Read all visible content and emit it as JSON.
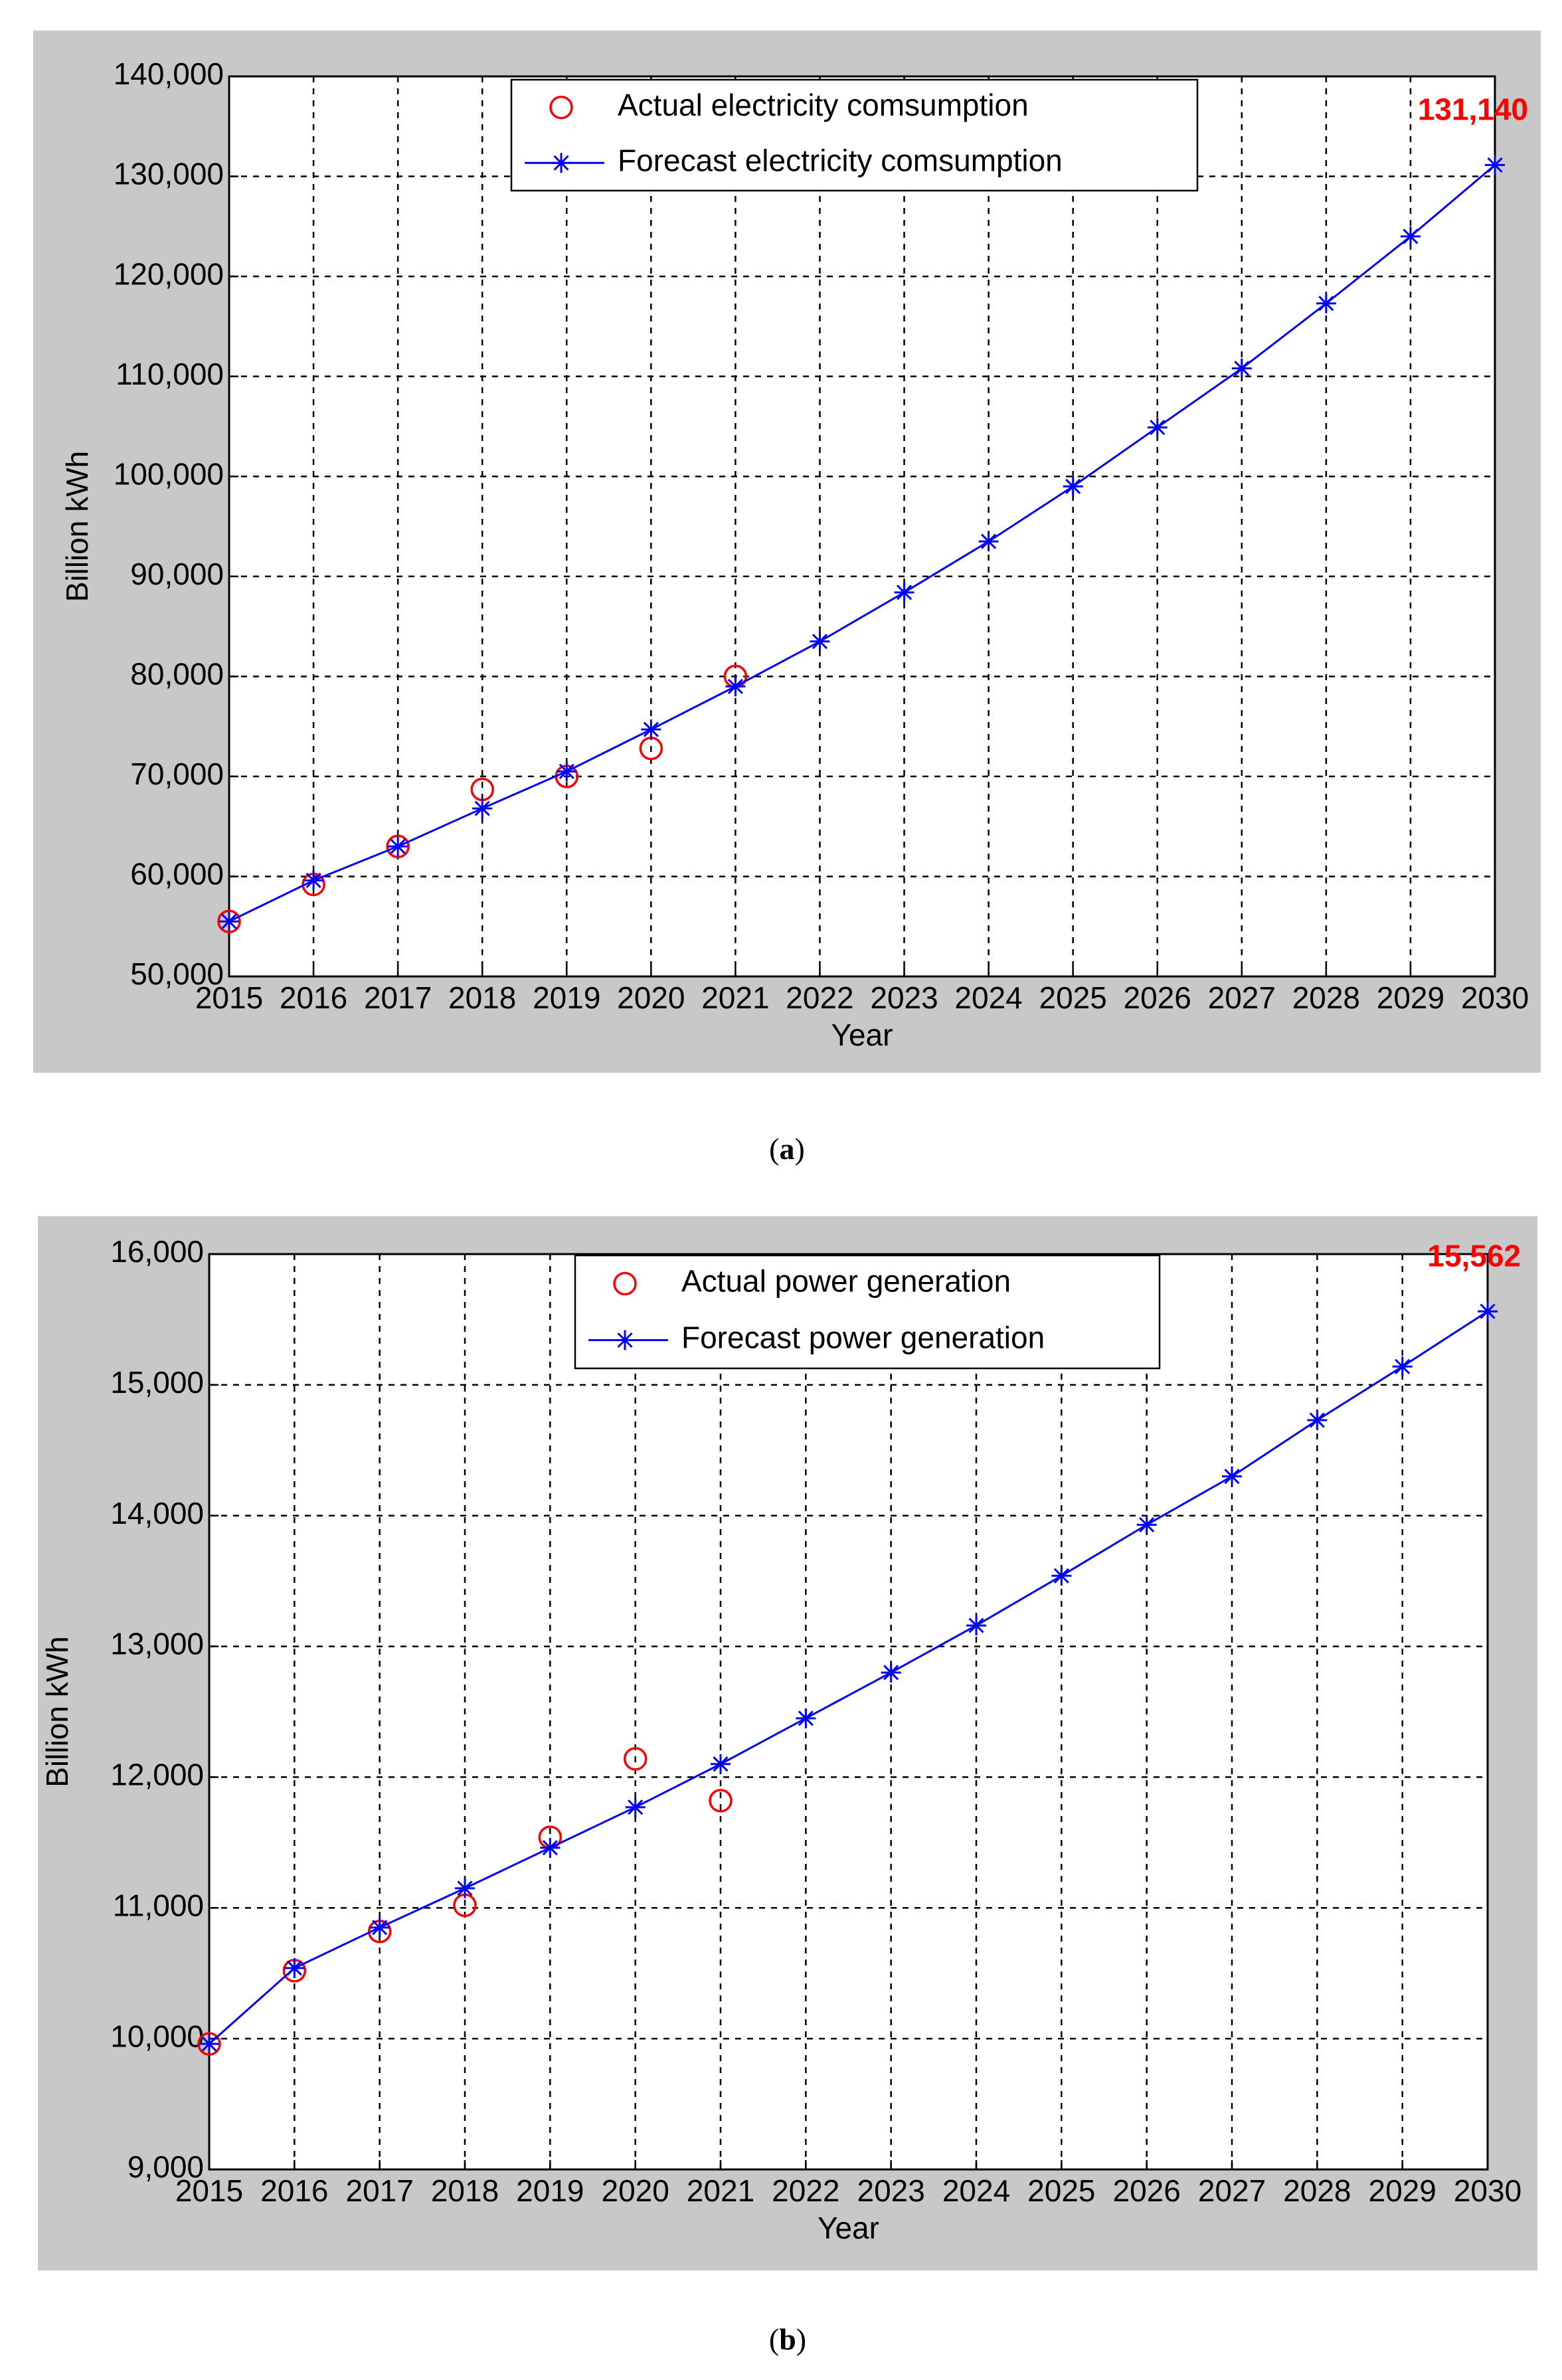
{
  "chart_data": [
    {
      "type": "line",
      "caption": "a",
      "xlabel": "Year",
      "ylabel": "Billion kWh",
      "x": [
        2015,
        2016,
        2017,
        2018,
        2019,
        2020,
        2021,
        2022,
        2023,
        2024,
        2025,
        2026,
        2027,
        2028,
        2029,
        2030
      ],
      "xlim": [
        2015,
        2030
      ],
      "xticks": [
        2015,
        2016,
        2017,
        2018,
        2019,
        2020,
        2021,
        2022,
        2023,
        2024,
        2025,
        2026,
        2027,
        2028,
        2029,
        2030
      ],
      "ylim": [
        50000,
        140000
      ],
      "yticks": [
        {
          "value": 50000,
          "label": "50,000"
        },
        {
          "value": 60000,
          "label": "60,000"
        },
        {
          "value": 70000,
          "label": "70,000"
        },
        {
          "value": 80000,
          "label": "80,000"
        },
        {
          "value": 90000,
          "label": "90,000"
        },
        {
          "value": 100000,
          "label": "100,000"
        },
        {
          "value": 110000,
          "label": "110,000"
        },
        {
          "value": 120000,
          "label": "120,000"
        },
        {
          "value": 130000,
          "label": "130,000"
        },
        {
          "value": 140000,
          "label": "140,000"
        }
      ],
      "grid": true,
      "legend": "upper center",
      "series": [
        {
          "name": "Actual electricity comsumption",
          "color": "#ff0000",
          "marker": "circle",
          "linestyle": "none",
          "values": [
            55500,
            59200,
            63000,
            68700,
            70000,
            72800,
            80000,
            null,
            null,
            null,
            null,
            null,
            null,
            null,
            null,
            null
          ]
        },
        {
          "name": "Forecast electricity comsumption",
          "color": "#0000ff",
          "marker": "star",
          "linestyle": "solid",
          "values": [
            55500,
            59600,
            63000,
            66800,
            70500,
            74700,
            79000,
            83500,
            88400,
            93500,
            99000,
            104900,
            110800,
            117300,
            124000,
            131140
          ],
          "value_labels": [
            null,
            null,
            null,
            null,
            null,
            null,
            null,
            null,
            null,
            null,
            null,
            null,
            null,
            null,
            null,
            "131,140"
          ],
          "label_color": "#ff0000"
        }
      ]
    },
    {
      "type": "line",
      "caption": "b",
      "xlabel": "Year",
      "ylabel": "Billion kWh",
      "x": [
        2015,
        2016,
        2017,
        2018,
        2019,
        2020,
        2021,
        2022,
        2023,
        2024,
        2025,
        2026,
        2027,
        2028,
        2029,
        2030
      ],
      "xlim": [
        2015,
        2030
      ],
      "xticks": [
        2015,
        2016,
        2017,
        2018,
        2019,
        2020,
        2021,
        2022,
        2023,
        2024,
        2025,
        2026,
        2027,
        2028,
        2029,
        2030
      ],
      "ylim": [
        9000,
        16000
      ],
      "yticks": [
        {
          "value": 9000,
          "label": "9,000"
        },
        {
          "value": 10000,
          "label": "10,000"
        },
        {
          "value": 11000,
          "label": "11,000"
        },
        {
          "value": 12000,
          "label": "12,000"
        },
        {
          "value": 13000,
          "label": "13,000"
        },
        {
          "value": 14000,
          "label": "14,000"
        },
        {
          "value": 15000,
          "label": "15,000"
        },
        {
          "value": 16000,
          "label": "16,000"
        }
      ],
      "grid": true,
      "legend": "upper center",
      "series": [
        {
          "name": "Actual power generation",
          "color": "#ff0000",
          "marker": "circle",
          "linestyle": "none",
          "values": [
            9960,
            10520,
            10820,
            11020,
            11540,
            12140,
            11820,
            null,
            null,
            null,
            null,
            null,
            null,
            null,
            null,
            null
          ]
        },
        {
          "name": "Forecast power generation",
          "color": "#0000ff",
          "marker": "star",
          "linestyle": "solid",
          "values": [
            9960,
            10540,
            10850,
            11150,
            11460,
            11770,
            12100,
            12450,
            12800,
            13160,
            13540,
            13930,
            14300,
            14730,
            15140,
            15562
          ],
          "value_labels": [
            null,
            null,
            null,
            null,
            null,
            null,
            null,
            null,
            null,
            null,
            null,
            null,
            null,
            null,
            null,
            "15,562"
          ],
          "label_color": "#ff0000"
        }
      ]
    }
  ]
}
